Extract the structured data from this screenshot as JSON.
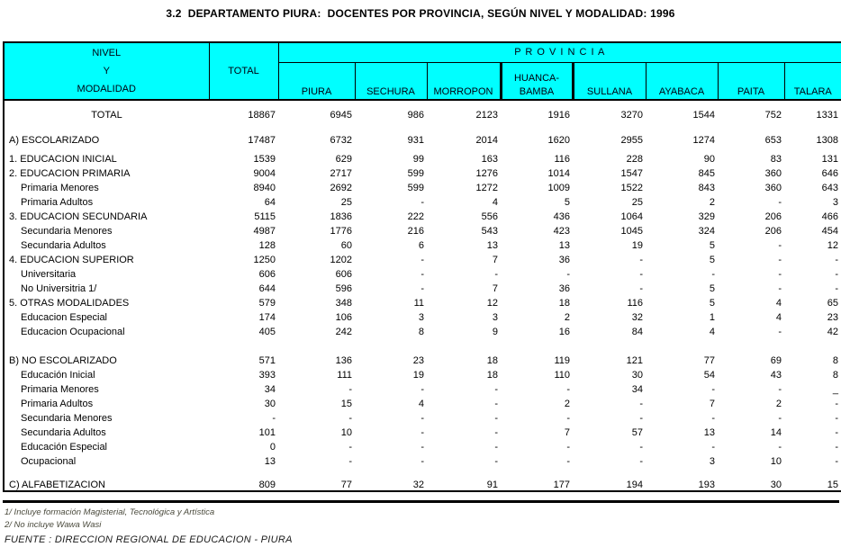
{
  "title": "3.2  DEPARTAMENTO PIURA:  DOCENTES POR PROVINCIA, SEGÚN NIVEL Y MODALIDAD: 1996",
  "colors": {
    "header_bg": "#00FFFF",
    "border": "#000000",
    "text": "#000000"
  },
  "table": {
    "header": {
      "col1_lines": [
        "NIVEL",
        "Y",
        "MODALIDAD"
      ],
      "total_label": "TOTAL",
      "provincia_label": "P R O V I N C I A",
      "provinces": [
        {
          "name": "PIURA",
          "lines": [
            "PIURA"
          ],
          "thick": false
        },
        {
          "name": "SECHURA",
          "lines": [
            "SECHURA"
          ],
          "thick": false
        },
        {
          "name": "MORROPON",
          "lines": [
            "MORROPON"
          ],
          "thick": false
        },
        {
          "name": "HUANCA-BAMBA",
          "lines": [
            "HUANCA-",
            "BAMBA"
          ],
          "thick": true
        },
        {
          "name": "SULLANA",
          "lines": [
            "SULLANA"
          ],
          "thick": false
        },
        {
          "name": "AYABACA",
          "lines": [
            "AYABACA"
          ],
          "thick": false
        },
        {
          "name": "PAITA",
          "lines": [
            "PAITA"
          ],
          "thick": false
        },
        {
          "name": "TALARA",
          "lines": [
            "TALARA"
          ],
          "thick": false
        }
      ]
    },
    "rows": [
      {
        "label": "TOTAL",
        "style": "center",
        "gap_before": 7,
        "values": [
          "18867",
          "6945",
          "986",
          "2123",
          "1916",
          "3270",
          "1544",
          "752",
          "1331"
        ]
      },
      {
        "label": "A) ESCOLARIZADO",
        "style": "main",
        "gap_before": 12,
        "values": [
          "17487",
          "6732",
          "931",
          "2014",
          "1620",
          "2955",
          "1274",
          "653",
          "1308"
        ]
      },
      {
        "label": "1. EDUCACION INICIAL",
        "style": "main",
        "gap_before": 5,
        "values": [
          "1539",
          "629",
          "99",
          "163",
          "116",
          "228",
          "90",
          "83",
          "131"
        ]
      },
      {
        "label": "2. EDUCACION PRIMARIA",
        "style": "main",
        "gap_before": 0,
        "values": [
          "9004",
          "2717",
          "599",
          "1276",
          "1014",
          "1547",
          "845",
          "360",
          "646"
        ]
      },
      {
        "label": "Primaria Menores",
        "style": "sub",
        "gap_before": 0,
        "values": [
          "8940",
          "2692",
          "599",
          "1272",
          "1009",
          "1522",
          "843",
          "360",
          "643"
        ]
      },
      {
        "label": "Primaria Adultos",
        "style": "sub",
        "gap_before": 0,
        "values": [
          "64",
          "25",
          "-",
          "4",
          "5",
          "25",
          "2",
          "-",
          "3"
        ]
      },
      {
        "label": "3. EDUCACION SECUNDARIA",
        "style": "main",
        "gap_before": 0,
        "values": [
          "5115",
          "1836",
          "222",
          "556",
          "436",
          "1064",
          "329",
          "206",
          "466"
        ]
      },
      {
        "label": "Secundaria Menores",
        "style": "sub",
        "gap_before": 0,
        "values": [
          "4987",
          "1776",
          "216",
          "543",
          "423",
          "1045",
          "324",
          "206",
          "454"
        ]
      },
      {
        "label": "Secundaria Adultos",
        "style": "sub",
        "gap_before": 0,
        "values": [
          "128",
          "60",
          "6",
          "13",
          "13",
          "19",
          "5",
          "-",
          "12"
        ]
      },
      {
        "label": "4. EDUCACION SUPERIOR",
        "style": "main",
        "gap_before": 0,
        "values": [
          "1250",
          "1202",
          "-",
          "7",
          "36",
          "-",
          "5",
          "-",
          "-"
        ]
      },
      {
        "label": "Universitaria",
        "style": "sub",
        "gap_before": 0,
        "values": [
          "606",
          "606",
          "-",
          "-",
          "-",
          "-",
          "-",
          "-",
          "-"
        ]
      },
      {
        "label": "No Universitria 1/",
        "style": "sub",
        "gap_before": 0,
        "values": [
          "644",
          "596",
          "-",
          "7",
          "36",
          "-",
          "5",
          "-",
          "-"
        ]
      },
      {
        "label": "5. OTRAS MODALIDADES",
        "style": "main",
        "gap_before": 0,
        "values": [
          "579",
          "348",
          "11",
          "12",
          "18",
          "116",
          "5",
          "4",
          "65"
        ]
      },
      {
        "label": "Educacion Especial",
        "style": "sub",
        "gap_before": 0,
        "values": [
          "174",
          "106",
          "3",
          "3",
          "2",
          "32",
          "1",
          "4",
          "23"
        ]
      },
      {
        "label": "Educacion Ocupacional",
        "style": "sub",
        "gap_before": 0,
        "values": [
          "405",
          "242",
          "8",
          "9",
          "16",
          "84",
          "4",
          "-",
          "42"
        ]
      },
      {
        "label": "B) NO ESCOLARIZADO",
        "style": "main",
        "gap_before": 16,
        "values": [
          "571",
          "136",
          "23",
          "18",
          "119",
          "121",
          "77",
          "69",
          "8"
        ]
      },
      {
        "label": "Educación Inicial",
        "style": "sub",
        "gap_before": 0,
        "values": [
          "393",
          "111",
          "19",
          "18",
          "110",
          "30",
          "54",
          "43",
          "8"
        ]
      },
      {
        "label": "Primaria Menores",
        "style": "sub",
        "gap_before": 0,
        "values": [
          "34",
          "-",
          "-",
          "-",
          "-",
          "34",
          "-",
          "-",
          "_"
        ]
      },
      {
        "label": "Primaria Adultos",
        "style": "sub",
        "gap_before": 0,
        "values": [
          "30",
          "15",
          "4",
          "-",
          "2",
          "-",
          "7",
          "2",
          "-"
        ]
      },
      {
        "label": "Secundaria Menores",
        "style": "sub",
        "gap_before": 0,
        "values": [
          "-",
          "-",
          "-",
          "-",
          "-",
          "-",
          "-",
          "-",
          "-"
        ]
      },
      {
        "label": "Secundaria Adultos",
        "style": "sub",
        "gap_before": 0,
        "values": [
          "101",
          "10",
          "-",
          "-",
          "7",
          "57",
          "13",
          "14",
          "-"
        ]
      },
      {
        "label": "Educación Especial",
        "style": "sub",
        "gap_before": 0,
        "values": [
          "0",
          "-",
          "-",
          "-",
          "-",
          "-",
          "-",
          "-",
          "-"
        ]
      },
      {
        "label": "Ocupacional",
        "style": "sub",
        "gap_before": 0,
        "values": [
          "13",
          "-",
          "-",
          "-",
          "-",
          "-",
          "3",
          "10",
          "-"
        ]
      },
      {
        "label": "C) ALFABETIZACION",
        "style": "main",
        "gap_before": 11,
        "values": [
          "809",
          "77",
          "32",
          "91",
          "177",
          "194",
          "193",
          "30",
          "15"
        ]
      }
    ]
  },
  "footnotes": [
    "1/ Incluye formación Magisterial, Tecnológica y Artística",
    "2/ No incluye Wawa Wasi",
    "FUENTE : DIRECCION  REGIONAL DE EDUCACION - PIURA"
  ]
}
